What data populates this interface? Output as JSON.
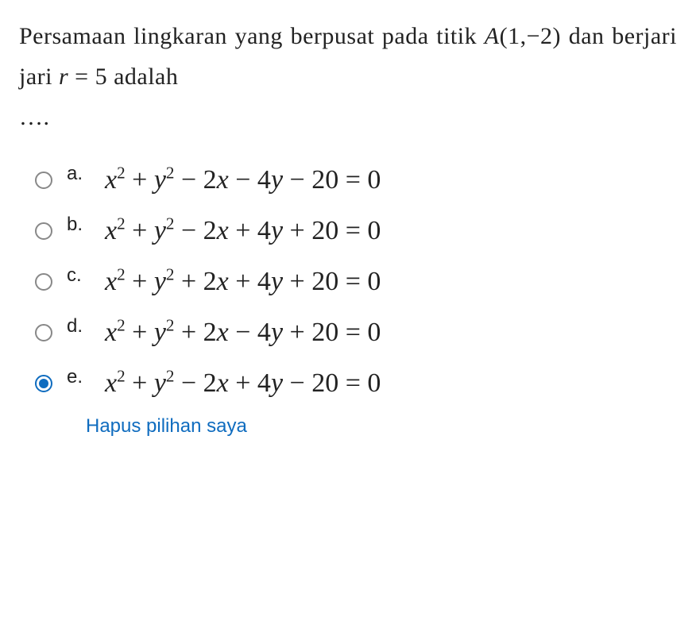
{
  "question": {
    "line1_pre": "Persamaan lingkaran yang berpusat pada titik ",
    "point_A_label": "A",
    "point_A_coords": "(1,−2)",
    "line1_mid": " dan berjari jari ",
    "r_eq": "r = 5",
    "line1_post": " adalah ",
    "dots": "…."
  },
  "options": [
    {
      "letter": "a.",
      "formula_html": "<span>x</span><sup class='rm'>2</sup><span class='rm'> + </span><span>y</span><sup class='rm'>2</sup><span class='rm'> − 2</span><span>x</span><span class='rm'> − 4</span><span>y</span><span class='rm'> − 20 = 0</span>",
      "selected": false
    },
    {
      "letter": "b.",
      "formula_html": "<span>x</span><sup class='rm'>2</sup><span class='rm'> + </span><span>y</span><sup class='rm'>2</sup><span class='rm'> − 2</span><span>x</span><span class='rm'> + 4</span><span>y</span><span class='rm'> + 20 = 0</span>",
      "selected": false
    },
    {
      "letter": "c.",
      "formula_html": "<span>x</span><sup class='rm'>2</sup><span class='rm'> + </span><span>y</span><sup class='rm'>2</sup><span class='rm'> + 2</span><span>x</span><span class='rm'> + 4</span><span>y</span><span class='rm'> + 20 = 0</span>",
      "selected": false
    },
    {
      "letter": "d.",
      "formula_html": "<span>x</span><sup class='rm'>2</sup><span class='rm'> + </span><span>y</span><sup class='rm'>2</sup><span class='rm'> + 2</span><span>x</span><span class='rm'> − 4</span><span>y</span><span class='rm'> + 20 = 0</span>",
      "selected": false
    },
    {
      "letter": "e.",
      "formula_html": "<span>x</span><sup class='rm'>2</sup><span class='rm'> + </span><span>y</span><sup class='rm'>2</sup><span class='rm'> − 2</span><span>x</span><span class='rm'> + 4</span><span>y</span><span class='rm'> − 20 = 0</span>",
      "selected": true
    }
  ],
  "clear_label": "Hapus pilihan saya",
  "colors": {
    "accent": "#0f6cbf",
    "text": "#222222",
    "radio_border": "#888888",
    "background": "#ffffff"
  },
  "typography": {
    "question_fontsize": 30,
    "option_letter_fontsize": 24,
    "formula_fontsize": 34,
    "clear_fontsize": 24
  }
}
